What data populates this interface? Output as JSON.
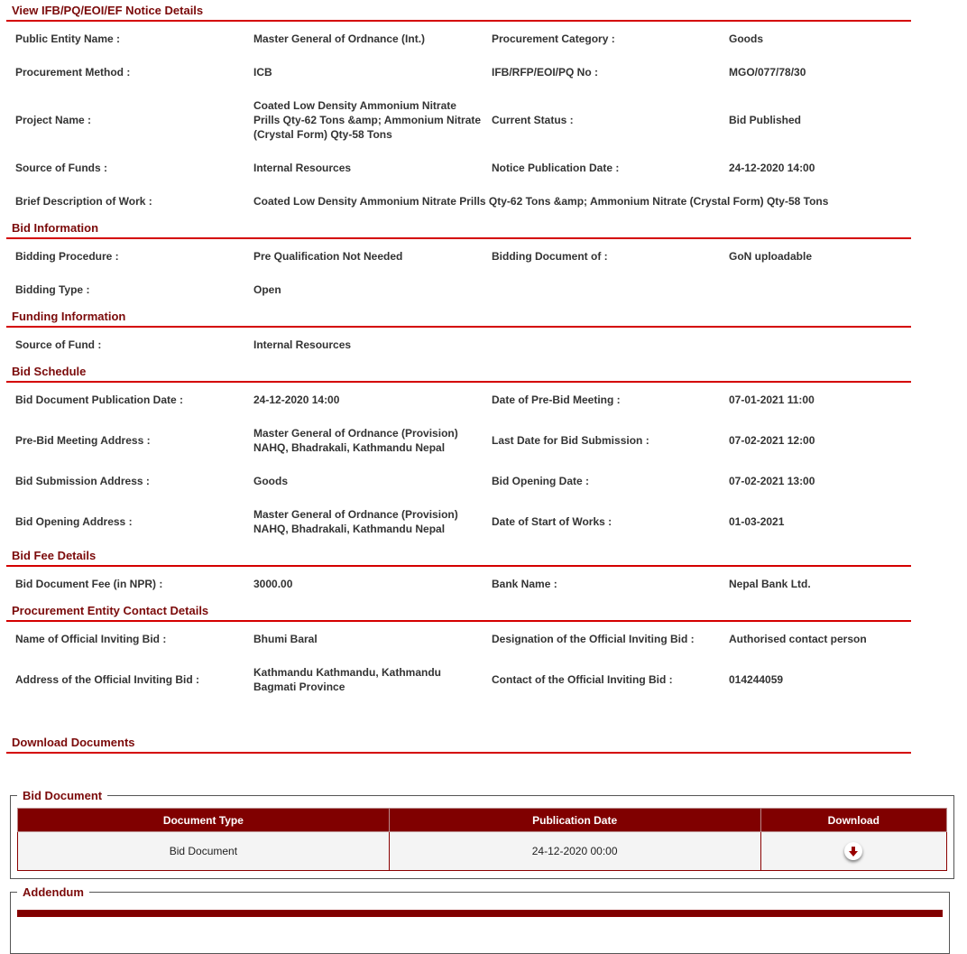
{
  "sections": [
    {
      "title": "View IFB/PQ/EOI/EF Notice Details",
      "rows": [
        {
          "cls": "",
          "cells": [
            "Public Entity Name :",
            "Master General of Ordnance (Int.)",
            "Procurement Category :",
            "Goods"
          ]
        },
        {
          "cls": "",
          "cells": [
            "Procurement Method :",
            "ICB",
            "IFB/RFP/EOI/PQ No :",
            "MGO/077/78/30"
          ]
        },
        {
          "cls": "r3",
          "cells": [
            "Project Name :",
            "Coated Low Density Ammonium Nitrate Prills Qty-62 Tons &amp; Ammonium Nitrate (Crystal Form) Qty-58 Tons",
            "Current Status :",
            "Bid Published"
          ]
        },
        {
          "cls": "",
          "cells": [
            "Source of Funds :",
            "Internal Resources",
            "Notice Publication Date :",
            "24-12-2020 14:00"
          ]
        },
        {
          "cls": "",
          "wide": true,
          "cells": [
            "Brief Description of Work :",
            "Coated Low Density Ammonium Nitrate Prills Qty-62 Tons &amp; Ammonium Nitrate (Crystal Form) Qty-58 Tons"
          ]
        }
      ]
    },
    {
      "title": "Bid Information",
      "rows": [
        {
          "cls": "",
          "cells": [
            "Bidding Procedure :",
            "Pre Qualification Not Needed",
            "Bidding Document of :",
            "GoN uploadable"
          ]
        },
        {
          "cls": "",
          "cells": [
            "Bidding Type :",
            "Open",
            "",
            ""
          ]
        }
      ]
    },
    {
      "title": "Funding Information",
      "rows": [
        {
          "cls": "",
          "cells": [
            "Source of Fund :",
            "Internal Resources",
            "",
            ""
          ]
        }
      ]
    },
    {
      "title": "Bid Schedule",
      "rows": [
        {
          "cls": "",
          "cells": [
            "Bid Document Publication Date :",
            "24-12-2020 14:00",
            "Date of Pre-Bid Meeting :",
            "07-01-2021 11:00"
          ]
        },
        {
          "cls": "r2",
          "cells": [
            "Pre-Bid Meeting Address :",
            "Master General of Ordnance (Provision) NAHQ, Bhadrakali, Kathmandu Nepal",
            "Last Date for Bid Submission :",
            "07-02-2021 12:00"
          ]
        },
        {
          "cls": "",
          "cells": [
            "Bid Submission Address :",
            "Goods",
            "Bid Opening Date :",
            "07-02-2021 13:00"
          ]
        },
        {
          "cls": "r2",
          "cells": [
            "Bid Opening Address :",
            "Master General of Ordnance (Provision) NAHQ, Bhadrakali, Kathmandu Nepal",
            "Date of Start of Works :",
            "01-03-2021"
          ]
        }
      ]
    },
    {
      "title": "Bid Fee Details",
      "rows": [
        {
          "cls": "",
          "cells": [
            "Bid Document Fee (in NPR) :",
            "3000.00",
            "Bank Name :",
            "Nepal Bank Ltd."
          ]
        }
      ]
    },
    {
      "title": "Procurement Entity Contact Details",
      "rows": [
        {
          "cls": "",
          "cells": [
            "Name of Official Inviting Bid :",
            "Bhumi Baral",
            "Designation of the Official Inviting Bid :",
            "Authorised contact person"
          ]
        },
        {
          "cls": "r2",
          "cells": [
            "Address of the Official Inviting Bid :",
            "Kathmandu Kathmandu, Kathmandu Bagmati Province",
            "Contact of the Official Inviting Bid :",
            "014244059"
          ]
        }
      ]
    }
  ],
  "downloads": {
    "title": "Download Documents",
    "bid_document": {
      "legend": "Bid Document",
      "headers": [
        "Document Type",
        "Publication Date",
        "Download"
      ],
      "rows": [
        {
          "type": "Bid Document",
          "date": "24-12-2020 00:00",
          "icon": "download-icon"
        }
      ]
    },
    "addendum": {
      "legend": "Addendum"
    }
  },
  "colors": {
    "heading": "#7b0a0a",
    "rule": "#d40000",
    "table_header": "#800000"
  }
}
